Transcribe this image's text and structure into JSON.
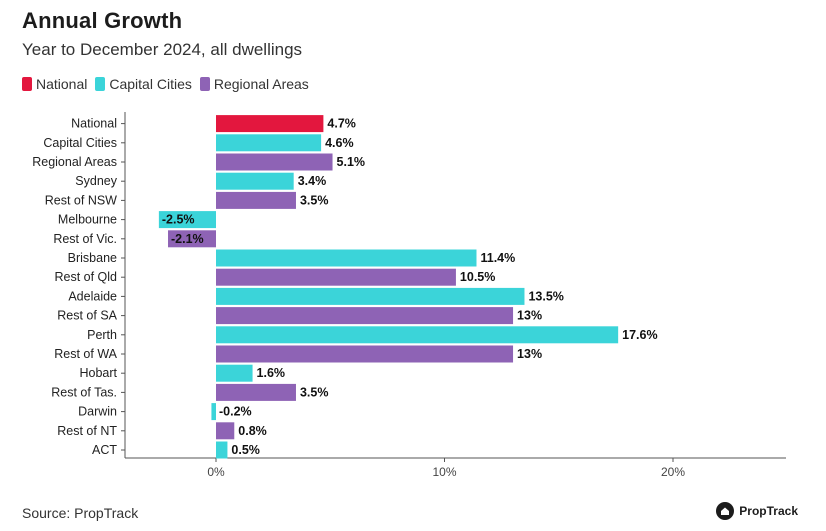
{
  "header": {
    "title": "Annual Growth",
    "subtitle": "Year to December 2024, all dwellings"
  },
  "legend": [
    {
      "label": "National",
      "color": "#e3173e"
    },
    {
      "label": "Capital Cities",
      "color": "#3bd4d9"
    },
    {
      "label": "Regional Areas",
      "color": "#8e63b5"
    }
  ],
  "footer": {
    "source": "Source: PropTrack",
    "brand": "PropTrack"
  },
  "chart_data": {
    "type": "bar",
    "orientation": "horizontal",
    "title": "Annual Growth",
    "subtitle": "Year to December 2024, all dwellings",
    "xlabel": "",
    "ylabel": "",
    "xlim": [
      -4,
      25
    ],
    "xticks": [
      0,
      10,
      20
    ],
    "xtick_labels": [
      "0%",
      "10%",
      "20%"
    ],
    "grid": false,
    "legend_position": "top-left",
    "categories": [
      "National",
      "Capital Cities",
      "Regional Areas",
      "Sydney",
      "Rest of NSW",
      "Melbourne",
      "Rest of Vic.",
      "Brisbane",
      "Rest of Qld",
      "Adelaide",
      "Rest of SA",
      "Perth",
      "Rest of WA",
      "Hobart",
      "Rest of Tas.",
      "Darwin",
      "Rest of NT",
      "ACT"
    ],
    "values": [
      4.7,
      4.6,
      5.1,
      3.4,
      3.5,
      -2.5,
      -2.1,
      11.4,
      10.5,
      13.5,
      13,
      17.6,
      13,
      1.6,
      3.5,
      -0.2,
      0.8,
      0.5
    ],
    "value_labels": [
      "4.7%",
      "4.6%",
      "5.1%",
      "3.4%",
      "3.5%",
      "-2.5%",
      "-2.1%",
      "11.4%",
      "10.5%",
      "13.5%",
      "13%",
      "17.6%",
      "13%",
      "1.6%",
      "3.5%",
      "-0.2%",
      "0.8%",
      "0.5%"
    ],
    "groups": [
      "National",
      "Capital Cities",
      "Regional Areas",
      "Capital Cities",
      "Regional Areas",
      "Capital Cities",
      "Regional Areas",
      "Capital Cities",
      "Regional Areas",
      "Capital Cities",
      "Regional Areas",
      "Capital Cities",
      "Regional Areas",
      "Capital Cities",
      "Regional Areas",
      "Capital Cities",
      "Regional Areas",
      "Capital Cities"
    ]
  }
}
